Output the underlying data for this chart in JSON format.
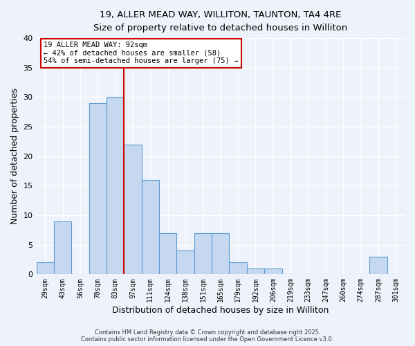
{
  "title_line1": "19, ALLER MEAD WAY, WILLITON, TAUNTON, TA4 4RE",
  "title_line2": "Size of property relative to detached houses in Williton",
  "xlabel": "Distribution of detached houses by size in Williton",
  "ylabel": "Number of detached properties",
  "bar_labels": [
    "29sqm",
    "43sqm",
    "56sqm",
    "70sqm",
    "83sqm",
    "97sqm",
    "111sqm",
    "124sqm",
    "138sqm",
    "151sqm",
    "165sqm",
    "179sqm",
    "192sqm",
    "206sqm",
    "219sqm",
    "233sqm",
    "247sqm",
    "260sqm",
    "274sqm",
    "287sqm",
    "301sqm"
  ],
  "bar_values": [
    2,
    9,
    0,
    29,
    30,
    22,
    16,
    7,
    4,
    7,
    7,
    2,
    1,
    1,
    0,
    0,
    0,
    0,
    0,
    3,
    0
  ],
  "bar_color": "#c5d8f0",
  "bar_edge_color": "#5b9bd5",
  "bar_edge_width": 0.8,
  "vline_x": 4.5,
  "vline_color": "#cc0000",
  "annotation_title": "19 ALLER MEAD WAY: 92sqm",
  "annotation_line1": "← 42% of detached houses are smaller (58)",
  "annotation_line2": "54% of semi-detached houses are larger (75) →",
  "background_color": "#eef2fa",
  "ylim": [
    0,
    40
  ],
  "yticks": [
    0,
    5,
    10,
    15,
    20,
    25,
    30,
    35,
    40
  ],
  "footer_line1": "Contains HM Land Registry data © Crown copyright and database right 2025.",
  "footer_line2": "Contains public sector information licensed under the Open Government Licence v3.0."
}
